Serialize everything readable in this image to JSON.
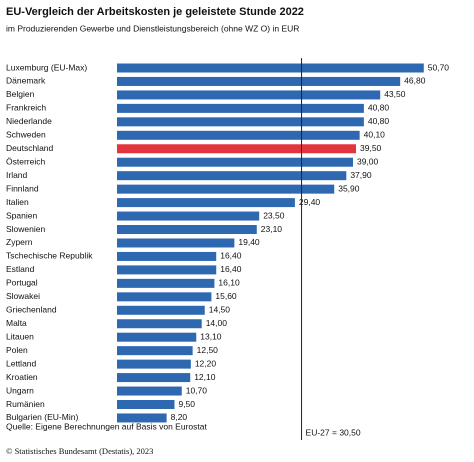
{
  "chart_data": {
    "type": "barh",
    "title": "EU-Vergleich der Arbeitskosten je geleistete Stunde 2022",
    "subtitle": "im Produzierenden Gewerbe und Dienstleistungsbereich (ohne WZ O) in EUR",
    "categories": [
      "Luxemburg (EU-Max)",
      "Dänemark",
      "Belgien",
      "Frankreich",
      "Niederlande",
      "Schweden",
      "Deutschland",
      "Österreich",
      "Irland",
      "Finnland",
      "Italien",
      "Spanien",
      "Slowenien",
      "Zypern",
      "Tschechische Republik",
      "Estland",
      "Portugal",
      "Slowakei",
      "Griechenland",
      "Malta",
      "Litauen",
      "Polen",
      "Lettland",
      "Kroatien",
      "Ungarn",
      "Rumänien",
      "Bulgarien (EU-Min)"
    ],
    "values": [
      50.7,
      46.8,
      43.5,
      40.8,
      40.8,
      40.1,
      39.5,
      39.0,
      37.9,
      35.9,
      29.4,
      23.5,
      23.1,
      19.4,
      16.4,
      16.4,
      16.1,
      15.6,
      14.5,
      14.0,
      13.1,
      12.5,
      12.2,
      12.1,
      10.7,
      9.5,
      8.2
    ],
    "value_labels": [
      "50,70",
      "46,80",
      "43,50",
      "40,80",
      "40,80",
      "40,10",
      "39,50",
      "39,00",
      "37,90",
      "35,90",
      "29,40",
      "23,50",
      "23,10",
      "19,40",
      "16,40",
      "16,40",
      "16,10",
      "15,60",
      "14,50",
      "14,00",
      "13,10",
      "12,50",
      "12,20",
      "12,10",
      "10,70",
      "9,50",
      "8,20"
    ],
    "color": "#2e68b1",
    "highlight": {
      "category": "Deutschland",
      "color": "#e2363e"
    },
    "xlim": [
      0,
      59
    ],
    "reference_line": {
      "value": 30.5,
      "label": "EU-27 = 30,50"
    },
    "source": "Quelle: Eigene Berechnungen auf Basis von Eurostat",
    "footer": "© Statistisches Bundesamt (Destatis), 2023"
  }
}
